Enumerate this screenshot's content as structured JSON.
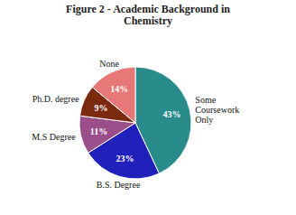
{
  "chart_data": {
    "type": "pie",
    "title": "Figure 2 - Academic Background in\nChemistry",
    "categories": [
      "Some\nCoursework\nOnly",
      "B.S. Degree",
      "M.S Degree",
      "Ph.D. degree",
      "None"
    ],
    "values": [
      43,
      23,
      11,
      9,
      14
    ],
    "value_labels": [
      "43%",
      "23%",
      "11%",
      "9%",
      "14%"
    ],
    "colors": [
      "#2a8b8b",
      "#2020bb",
      "#9b4f8a",
      "#7b2a10",
      "#e87878"
    ],
    "data_labels": true
  }
}
